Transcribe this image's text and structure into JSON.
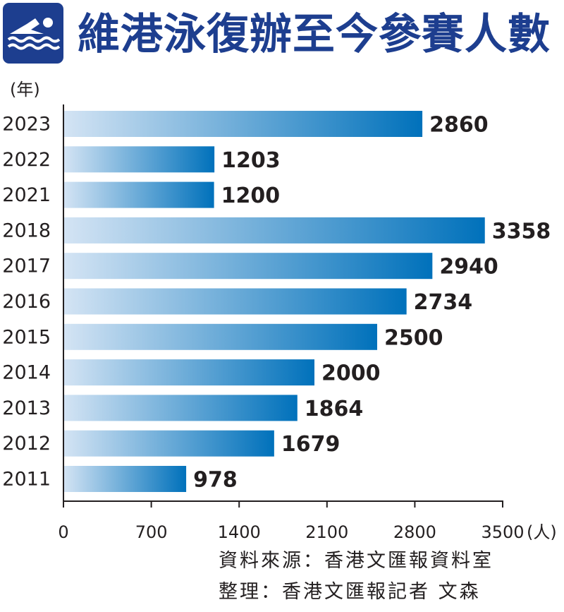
{
  "header": {
    "title": "維港泳復辦至今參賽人數",
    "icon": "swimmer-icon",
    "icon_bg_color": "#1d3e8f"
  },
  "chart_data": {
    "type": "bar",
    "orientation": "horizontal",
    "title": "維港泳復辦至今參賽人數",
    "y_unit_label": "(年)",
    "x_unit_label": "(人)",
    "categories": [
      "2023",
      "2022",
      "2021",
      "2018",
      "2017",
      "2016",
      "2015",
      "2014",
      "2013",
      "2012",
      "2011"
    ],
    "values": [
      2860,
      1203,
      1200,
      3358,
      2940,
      2734,
      2500,
      2000,
      1864,
      1679,
      978
    ],
    "value_labels": [
      "2860",
      "1203",
      "1200",
      "3358",
      "2940",
      "2734",
      "2500",
      "2000",
      "1864",
      "1679",
      "978"
    ],
    "xlim": [
      0,
      3500
    ],
    "x_ticks": [
      0,
      700,
      1400,
      2100,
      2800,
      3500
    ],
    "x_tick_labels": [
      "0",
      "700",
      "1400",
      "2100",
      "2800",
      "3500"
    ],
    "grid": false,
    "bar_gradient": [
      "#d4e4f4",
      "#0071bb"
    ]
  },
  "footer": {
    "source": "資料來源：香港文匯報資料室",
    "credit": "整理：香港文匯報記者 文森"
  }
}
